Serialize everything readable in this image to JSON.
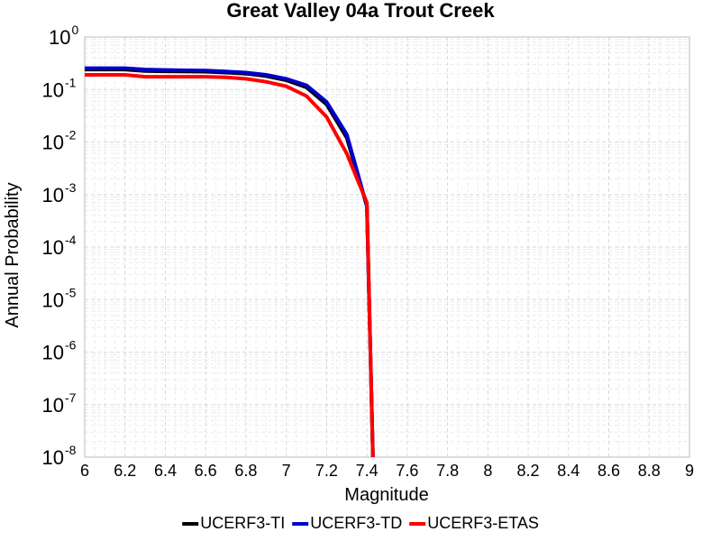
{
  "chart_data": {
    "type": "line",
    "title": "Great Valley 04a Trout Creek",
    "xlabel": "Magnitude",
    "ylabel": "Annual Probability",
    "xlim": [
      6,
      9
    ],
    "ylim": [
      1e-08,
      1
    ],
    "yscale": "log",
    "grid": true,
    "legend_position": "bottom",
    "xticks": [
      "6",
      "6.2",
      "6.4",
      "6.6",
      "6.8",
      "7",
      "7.2",
      "7.4",
      "7.6",
      "7.8",
      "8",
      "8.2",
      "8.4",
      "8.6",
      "8.8",
      "9"
    ],
    "yticks": [
      {
        "base": "10",
        "exp": "0"
      },
      {
        "base": "10",
        "exp": "-1"
      },
      {
        "base": "10",
        "exp": "-2"
      },
      {
        "base": "10",
        "exp": "-3"
      },
      {
        "base": "10",
        "exp": "-4"
      },
      {
        "base": "10",
        "exp": "-5"
      },
      {
        "base": "10",
        "exp": "-6"
      },
      {
        "base": "10",
        "exp": "-7"
      },
      {
        "base": "10",
        "exp": "-8"
      }
    ],
    "series": [
      {
        "name": "UCERF3-TI",
        "color": "#000000",
        "x": [
          6.0,
          6.1,
          6.2,
          6.3,
          6.4,
          6.5,
          6.6,
          6.7,
          6.8,
          6.9,
          7.0,
          7.1,
          7.2,
          7.3,
          7.4,
          7.43
        ],
        "y": [
          0.24,
          0.24,
          0.24,
          0.225,
          0.222,
          0.22,
          0.218,
          0.21,
          0.2,
          0.18,
          0.15,
          0.11,
          0.052,
          0.012,
          0.0006,
          1e-08
        ]
      },
      {
        "name": "UCERF3-TD",
        "color": "#0000cc",
        "x": [
          6.0,
          6.1,
          6.2,
          6.3,
          6.4,
          6.5,
          6.6,
          6.7,
          6.8,
          6.9,
          7.0,
          7.1,
          7.2,
          7.3,
          7.4,
          7.43
        ],
        "y": [
          0.255,
          0.255,
          0.255,
          0.24,
          0.235,
          0.232,
          0.23,
          0.22,
          0.21,
          0.19,
          0.16,
          0.12,
          0.058,
          0.014,
          0.0006,
          1e-08
        ]
      },
      {
        "name": "UCERF3-ETAS",
        "color": "#ff0000",
        "x": [
          6.0,
          6.1,
          6.2,
          6.3,
          6.4,
          6.5,
          6.6,
          6.7,
          6.8,
          6.9,
          7.0,
          7.1,
          7.2,
          7.3,
          7.4,
          7.43
        ],
        "y": [
          0.19,
          0.19,
          0.19,
          0.175,
          0.175,
          0.175,
          0.175,
          0.17,
          0.16,
          0.14,
          0.115,
          0.075,
          0.03,
          0.006,
          0.0007,
          1e-08
        ]
      }
    ]
  }
}
